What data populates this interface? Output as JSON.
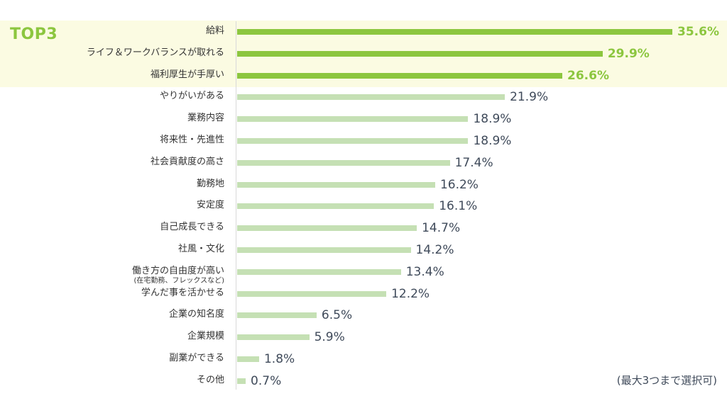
{
  "top3_label": "TOP3",
  "note": "(最大3つまで選択可)",
  "colors": {
    "top": "#8cc63f",
    "rest": "#c5e0b4",
    "band": "#fbfbe2"
  },
  "chart_data": {
    "type": "bar",
    "orientation": "horizontal",
    "categories": [
      "給料",
      "ライフ＆ワークバランスが取れる",
      "福利厚生が手厚い",
      "やりがいがある",
      "業務内容",
      "将来性・先進性",
      "社会貢献度の高さ",
      "勤務地",
      "安定度",
      "自己成長できる",
      "社風・文化",
      "働き方の自由度が高い",
      "学んだ事を活かせる",
      "企業の知名度",
      "企業規模",
      "副業ができる",
      "その他"
    ],
    "category_notes": {
      "11": "(在宅勤務、フレックスなど)"
    },
    "values": [
      35.6,
      29.9,
      26.6,
      21.9,
      18.9,
      18.9,
      17.4,
      16.2,
      16.1,
      14.7,
      14.2,
      13.4,
      12.2,
      6.5,
      5.9,
      1.8,
      0.7
    ],
    "value_labels": [
      "35.6%",
      "29.9%",
      "26.6%",
      "21.9%",
      "18.9%",
      "18.9%",
      "17.4%",
      "16.2%",
      "16.1%",
      "14.7%",
      "14.2%",
      "13.4%",
      "12.2%",
      "6.5%",
      "5.9%",
      "1.8%",
      "0.7%"
    ],
    "highlight_top": 3,
    "unit": "%",
    "grid": false,
    "legend": "none"
  }
}
